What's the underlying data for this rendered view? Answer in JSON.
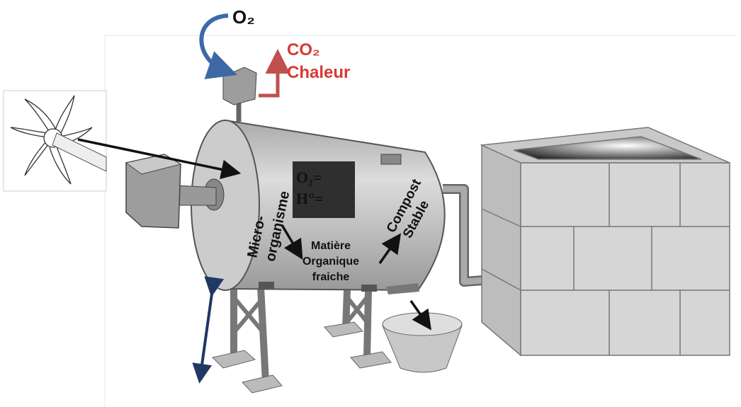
{
  "labels": {
    "oxygen": "O₂",
    "co2": "CO₂",
    "heat": "Chaleur",
    "display": [
      "O₂=",
      "H°="
    ],
    "micro_organisme": [
      "Micro-",
      "organisme"
    ],
    "matiere": [
      "Matière",
      "Organique",
      "fraiche"
    ],
    "compost": [
      "Compost",
      "Stable"
    ]
  }
}
